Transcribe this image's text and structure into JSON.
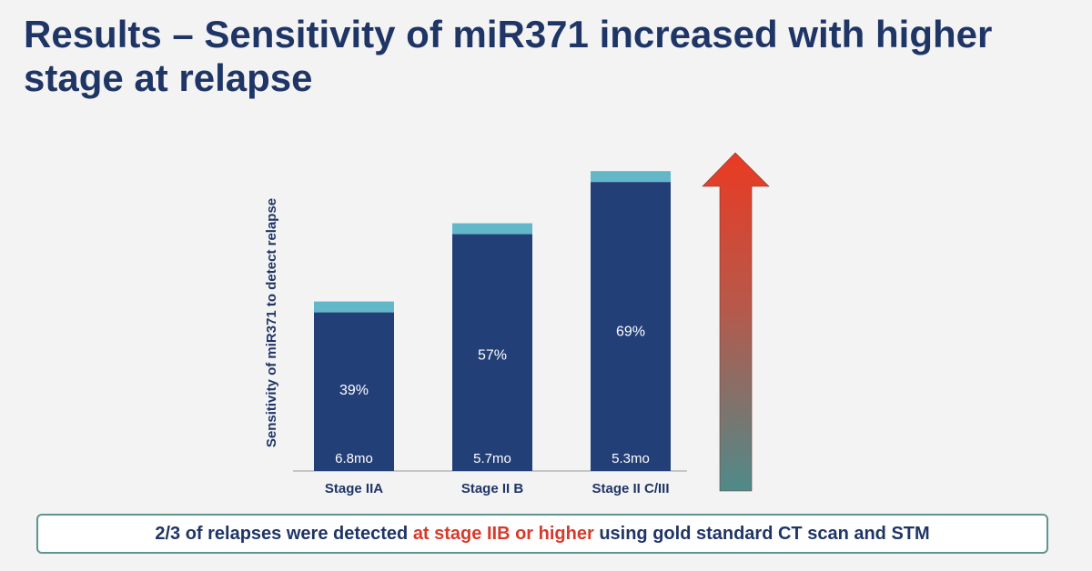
{
  "slide": {
    "title": "Results – Sensitivity of miR371 increased with higher stage at relapse"
  },
  "footer": {
    "text_before": "2/3 of relapses were detected ",
    "text_highlight": "at stage IIB or higher",
    "text_after": " using gold standard CT scan and STM"
  },
  "colors": {
    "bar_main": "#223f78",
    "bar_cap": "#62b8c8",
    "arrow_top": "#ea3a22",
    "arrow_bottom": "#4f8a8a",
    "highlight_text": "#d63a2a",
    "title_text": "#1f3566"
  },
  "chart_data": {
    "type": "bar",
    "title": "",
    "xlabel": "",
    "ylabel": "Sensitivity of miR371 to detect relapse",
    "categories": [
      "Stage IIA",
      "Stage II B",
      "Stage II C/III"
    ],
    "series": [
      {
        "values": [
          39,
          57,
          69
        ],
        "labels": [
          "39%",
          "57%",
          "69%"
        ]
      }
    ],
    "bar_base_labels": [
      "6.8mo",
      "5.7mo",
      "5.3mo"
    ],
    "ylim": [
      0,
      100
    ],
    "grid": false,
    "legend": "none",
    "annotation": "upward gradient arrow indicating increase"
  }
}
